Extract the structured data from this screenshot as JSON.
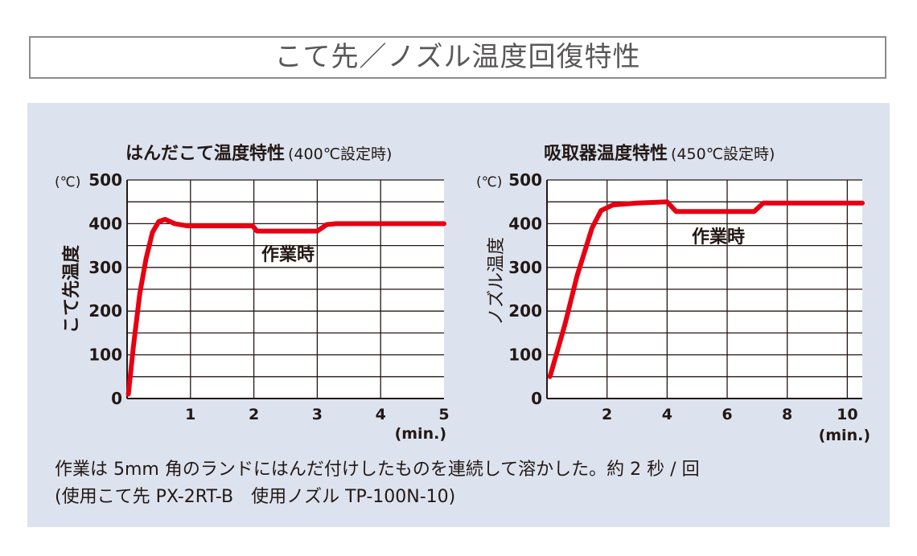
{
  "page_title": "こて先／ノズル温度回復特性",
  "notes": {
    "line1": "作業は 5mm 角のランドにはんだ付けしたものを連続して溶かした。約 2 秒 / 回",
    "line2": "(使用こて先 PX-2RT-B　使用ノズル TP-100N-10)"
  },
  "chart_data": [
    {
      "type": "line",
      "title": "はんだこて温度特性",
      "subtitle": "(400℃設定時)",
      "ylabel": "こて先温度",
      "yunit": "(℃)",
      "xunit": "(min.)",
      "xlim": [
        0,
        5
      ],
      "ylim": [
        0,
        500
      ],
      "xticks": [
        1,
        2,
        3,
        4,
        5
      ],
      "yticks": [
        0,
        100,
        200,
        300,
        400,
        500
      ],
      "grid": true,
      "line_color": "#e60012",
      "annotation": "作業時",
      "series": [
        {
          "x": [
            0.02,
            0.1,
            0.2,
            0.3,
            0.4,
            0.5,
            0.6,
            0.75,
            0.95,
            1.5,
            1.98,
            2.05,
            3.0,
            3.15,
            3.3,
            5.0
          ],
          "values": [
            10,
            120,
            240,
            320,
            380,
            405,
            410,
            400,
            395,
            395,
            395,
            383,
            383,
            398,
            400,
            400
          ]
        }
      ]
    },
    {
      "type": "line",
      "title": "吸取器温度特性",
      "subtitle": "(450℃設定時)",
      "ylabel": "ノズル温度",
      "yunit": "(℃)",
      "xunit": "(min.)",
      "xlim": [
        0,
        10.5
      ],
      "ylim": [
        0,
        500
      ],
      "xticks": [
        2,
        4,
        6,
        8,
        10
      ],
      "yticks": [
        0,
        100,
        200,
        300,
        400,
        500
      ],
      "grid": true,
      "line_color": "#e60012",
      "annotation": "作業時",
      "series": [
        {
          "x": [
            0.1,
            0.6,
            1.0,
            1.5,
            1.8,
            2.2,
            3.0,
            4.0,
            4.3,
            5.0,
            6.0,
            6.9,
            7.2,
            8.0,
            10.5
          ],
          "values": [
            50,
            170,
            280,
            390,
            430,
            443,
            447,
            450,
            428,
            428,
            428,
            428,
            447,
            447,
            447
          ]
        }
      ]
    }
  ]
}
